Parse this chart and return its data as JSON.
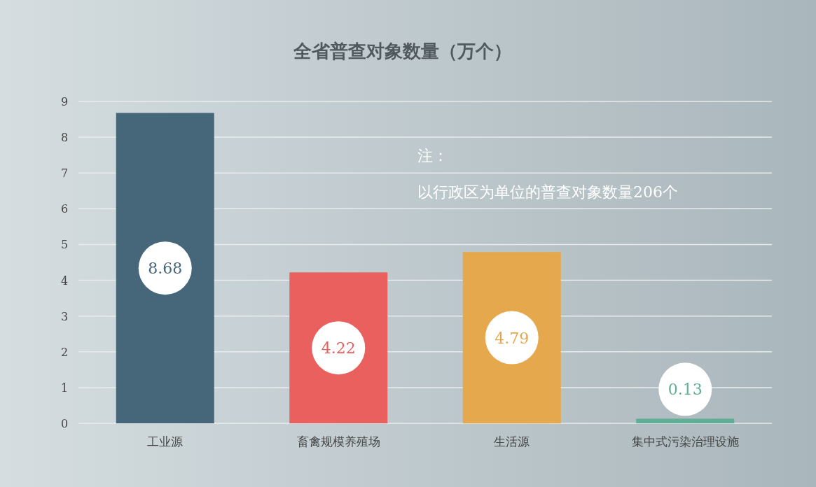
{
  "chart_data": {
    "type": "bar",
    "title": "全省普查对象数量（万个）",
    "categories": [
      "工业源",
      "畜禽规模养殖场",
      "生活源",
      "集中式污染治理设施"
    ],
    "values": [
      8.68,
      4.22,
      4.79,
      0.13
    ],
    "colors": [
      "#46677a",
      "#e9605e",
      "#e6a84c",
      "#5fae95"
    ],
    "ylim": [
      0,
      9
    ],
    "yticks": [
      0,
      1,
      2,
      3,
      4,
      5,
      6,
      7,
      8,
      9
    ],
    "grid": "y",
    "data_labels": true,
    "annotations": [
      "注：",
      "以行政区为单位的普查对象数量206个"
    ]
  }
}
